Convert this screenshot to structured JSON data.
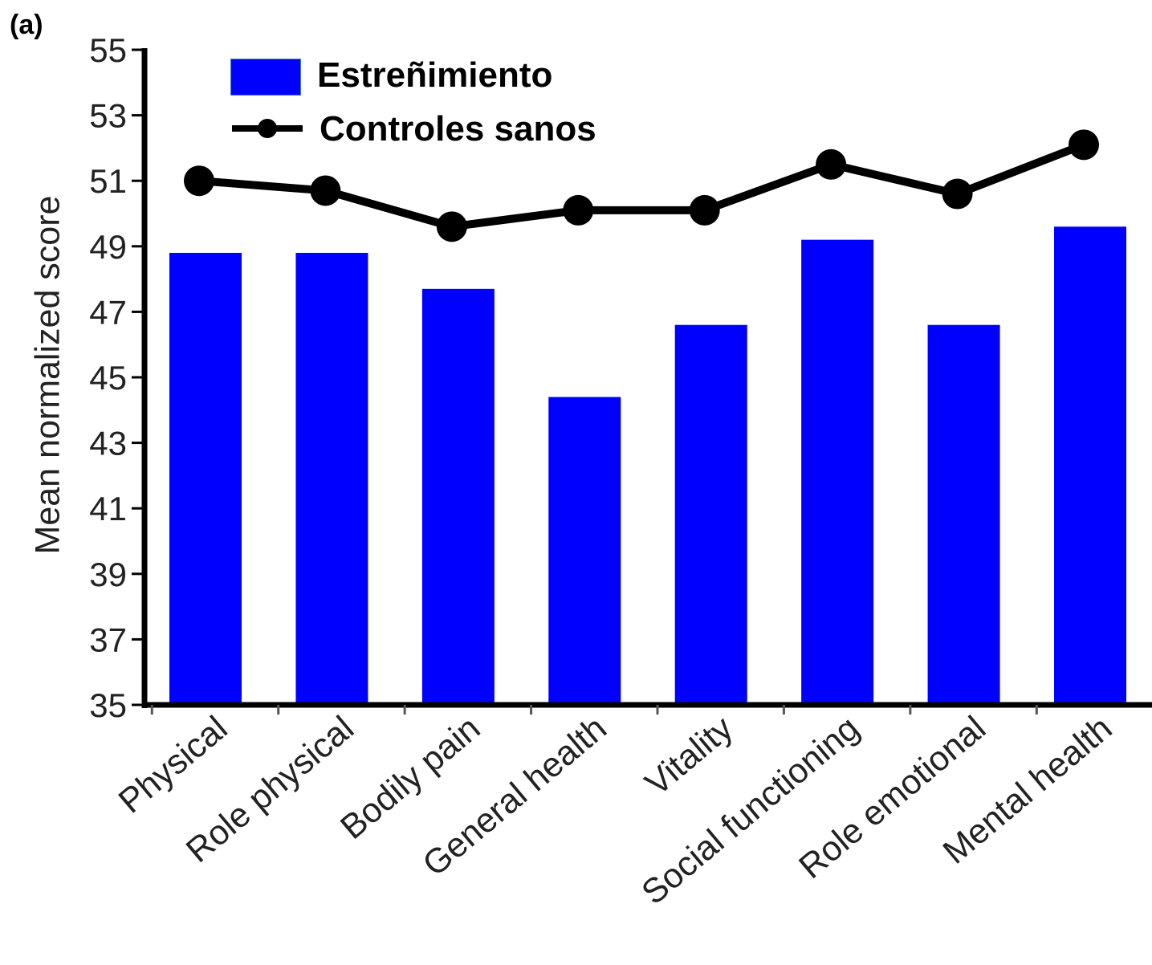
{
  "panel_label": "(a)",
  "colors": {
    "bar": "#0000ff",
    "line": "#000000",
    "axis": "#000000"
  },
  "chart_data": {
    "type": "bar",
    "title": "",
    "xlabel": "",
    "ylabel": "Mean  normalized score",
    "ylim": [
      35,
      55
    ],
    "yticks": [
      35,
      37,
      39,
      41,
      43,
      45,
      47,
      49,
      51,
      53,
      55
    ],
    "categories": [
      "Physical",
      "Role physical",
      "Bodily pain",
      "General health",
      "Vitality",
      "Social functioning",
      "Role emotional",
      "Mental health"
    ],
    "series": [
      {
        "name": "Estreñimiento",
        "type": "bar",
        "values": [
          48.8,
          48.8,
          47.7,
          44.4,
          46.6,
          49.2,
          46.6,
          49.6
        ]
      },
      {
        "name": "Controles sanos",
        "type": "line",
        "values": [
          51.0,
          50.7,
          49.6,
          50.1,
          50.1,
          51.5,
          50.6,
          52.1
        ]
      }
    ],
    "legend_position": "top-left",
    "grid": false
  }
}
